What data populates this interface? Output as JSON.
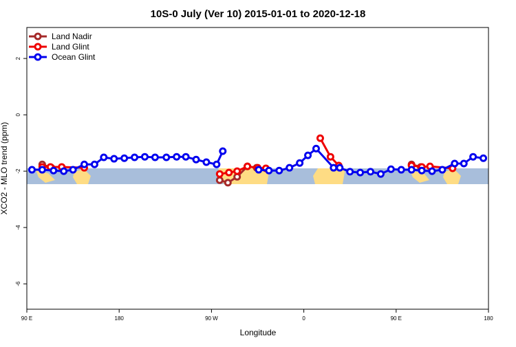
{
  "chart_data": {
    "type": "line",
    "title": "10S-0 July (Ver 10)   2015-01-01 to 2020-12-18",
    "xlabel": "Longitude",
    "ylabel": "XCO2 - MLO trend (ppm)",
    "xlim": [
      90,
      540
    ],
    "xticks": [
      {
        "value": 90,
        "label": "90 E"
      },
      {
        "value": 180,
        "label": "180"
      },
      {
        "value": 270,
        "label": "90 W"
      },
      {
        "value": 360,
        "label": "0"
      },
      {
        "value": 450,
        "label": "90 E"
      },
      {
        "value": 540,
        "label": "180"
      }
    ],
    "ylim": [
      -6.9,
      3.1
    ],
    "yticks": [
      -6,
      -4,
      -2,
      0,
      2
    ],
    "legend": "top-left",
    "series": [
      {
        "name": "Land Nadir",
        "color": "#a52a2a",
        "x": [
          105,
          114,
          null,
          278,
          286,
          295,
          305,
          314,
          null,
          465,
          474
        ],
        "values": [
          -1.76,
          -1.88,
          null,
          -2.32,
          -2.41,
          -2.2,
          -1.83,
          -1.88,
          null,
          -1.76,
          -1.85
        ]
      },
      {
        "name": "Land Glint",
        "color": "#ee0000",
        "x": [
          105,
          113,
          124,
          146,
          null,
          278,
          287,
          295,
          305,
          315,
          323,
          null,
          376,
          386,
          394,
          null,
          465,
          475,
          483,
          505
        ],
        "values": [
          -1.85,
          -1.85,
          -1.85,
          -1.88,
          null,
          -2.1,
          -2.05,
          -2.0,
          -1.83,
          -1.88,
          -1.9,
          null,
          -0.83,
          -1.49,
          -1.8,
          null,
          -1.8,
          -1.85,
          -1.83,
          -1.9
        ]
      },
      {
        "name": "Ocean Glint",
        "color": "#0000ee",
        "x": [
          95,
          105,
          116,
          126,
          135,
          146,
          156,
          165,
          175,
          185,
          195,
          205,
          215,
          226,
          236,
          245,
          255,
          265,
          275,
          281,
          null,
          316,
          326,
          336,
          346,
          356,
          364,
          372,
          389,
          395,
          405,
          415,
          425,
          435,
          445,
          455,
          465,
          475,
          485,
          495,
          507,
          516,
          525,
          535
        ],
        "values": [
          -1.95,
          -1.95,
          -1.98,
          -2.0,
          -1.95,
          -1.76,
          -1.76,
          -1.51,
          -1.56,
          -1.54,
          -1.51,
          -1.49,
          -1.51,
          -1.51,
          -1.49,
          -1.49,
          -1.59,
          -1.68,
          -1.76,
          -1.29,
          null,
          -1.95,
          -1.98,
          -1.98,
          -1.88,
          -1.71,
          -1.44,
          -1.2,
          -1.88,
          -1.88,
          -2.02,
          -2.05,
          -2.02,
          -2.1,
          -1.93,
          -1.95,
          -1.95,
          -1.98,
          -2.0,
          -1.95,
          -1.73,
          -1.73,
          -1.49,
          -1.54
        ]
      }
    ]
  }
}
